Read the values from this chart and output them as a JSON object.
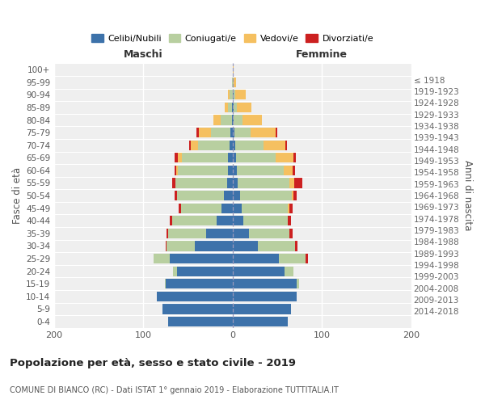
{
  "age_groups": [
    "0-4",
    "5-9",
    "10-14",
    "15-19",
    "20-24",
    "25-29",
    "30-34",
    "35-39",
    "40-44",
    "45-49",
    "50-54",
    "55-59",
    "60-64",
    "65-69",
    "70-74",
    "75-79",
    "80-84",
    "85-89",
    "90-94",
    "95-99",
    "100+"
  ],
  "birth_years": [
    "2014-2018",
    "2009-2013",
    "2004-2008",
    "1999-2003",
    "1994-1998",
    "1989-1993",
    "1984-1988",
    "1979-1983",
    "1974-1978",
    "1969-1973",
    "1964-1968",
    "1959-1963",
    "1954-1958",
    "1949-1953",
    "1944-1948",
    "1939-1943",
    "1934-1938",
    "1929-1933",
    "1924-1928",
    "1919-1923",
    "≤ 1918"
  ],
  "males_celibi": [
    72,
    78,
    85,
    75,
    62,
    70,
    42,
    30,
    18,
    12,
    10,
    6,
    5,
    5,
    3,
    2,
    1,
    1,
    0,
    0,
    0
  ],
  "males_coniugati": [
    0,
    0,
    0,
    1,
    5,
    18,
    32,
    42,
    50,
    46,
    52,
    58,
    56,
    52,
    36,
    22,
    12,
    4,
    3,
    1,
    0
  ],
  "males_vedovi": [
    0,
    0,
    0,
    0,
    0,
    0,
    0,
    0,
    0,
    0,
    0,
    0,
    2,
    4,
    8,
    14,
    8,
    4,
    2,
    0,
    0
  ],
  "males_divorziati": [
    0,
    0,
    0,
    0,
    0,
    0,
    1,
    2,
    2,
    2,
    3,
    4,
    2,
    4,
    2,
    2,
    0,
    0,
    0,
    0,
    0
  ],
  "females_nubili": [
    62,
    65,
    72,
    72,
    58,
    52,
    28,
    18,
    12,
    10,
    8,
    6,
    5,
    4,
    3,
    2,
    1,
    1,
    1,
    0,
    0
  ],
  "females_coniugate": [
    0,
    0,
    0,
    2,
    10,
    30,
    42,
    46,
    50,
    52,
    58,
    58,
    52,
    44,
    32,
    18,
    10,
    4,
    2,
    1,
    0
  ],
  "females_vedove": [
    0,
    0,
    0,
    0,
    0,
    0,
    0,
    0,
    0,
    2,
    2,
    5,
    10,
    20,
    24,
    28,
    22,
    16,
    12,
    3,
    1
  ],
  "females_divorziate": [
    0,
    0,
    0,
    0,
    0,
    2,
    3,
    3,
    3,
    3,
    4,
    9,
    3,
    3,
    2,
    2,
    0,
    0,
    0,
    0,
    0
  ],
  "color_celibi": "#3d72aa",
  "color_coniugati": "#b8cfa0",
  "color_vedovi": "#f5c060",
  "color_divorziati": "#cc2020",
  "bg_axes": "#efefef",
  "bg_fig": "#ffffff",
  "title": "Popolazione per età, sesso e stato civile - 2019",
  "subtitle": "COMUNE DI BIANCO (RC) - Dati ISTAT 1° gennaio 2019 - Elaborazione TUTTITALIA.IT",
  "legend_labels": [
    "Celibi/Nubili",
    "Coniugati/e",
    "Vedovi/e",
    "Divorziati/e"
  ],
  "label_maschi": "Maschi",
  "label_femmine": "Femmine",
  "ylabel_left": "Fasce di età",
  "ylabel_right": "Anni di nascita",
  "xlim": 200
}
